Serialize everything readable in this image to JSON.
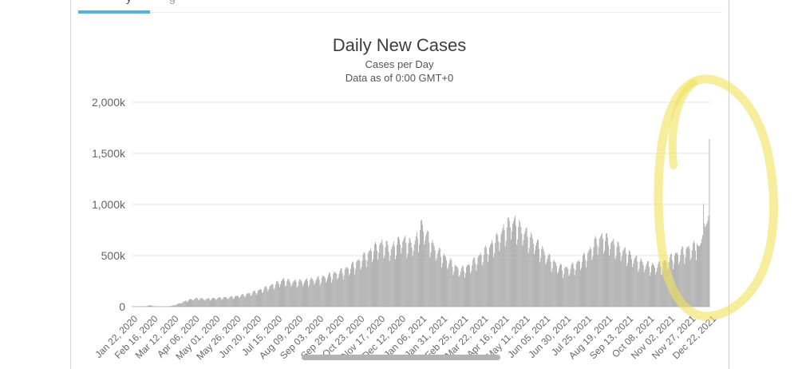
{
  "top_bar": {
    "active_tab_fragment": "y",
    "inactive_tab_fragment": "g",
    "active_underline_color": "#4fb7db"
  },
  "scrollbar": {
    "color": "#b3b3b3"
  },
  "chart_data": {
    "type": "bar",
    "title": "Daily New Cases",
    "subtitle1": "Cases per Day",
    "subtitle2": "Data as of 0:00 GMT+0",
    "xlabel": "",
    "ylabel": "",
    "legend": "none",
    "grid": "horizontal",
    "bar_color": "#a2a2a2",
    "grid_color": "#e6e6e6",
    "axis_line_color": "#c6c6c6",
    "label_color": "#666666",
    "ylim_thousands": [
      0,
      2000
    ],
    "yticks": [
      {
        "label": "2,000k",
        "value": 2000
      },
      {
        "label": "1,500k",
        "value": 1500
      },
      {
        "label": "1,000k",
        "value": 1000
      },
      {
        "label": "500k",
        "value": 500
      },
      {
        "label": "0",
        "value": 0
      }
    ],
    "x_tick_labels": [
      "Jan 22, 2020",
      "Feb 16, 2020",
      "Mar 12, 2020",
      "Apr 06, 2020",
      "May 01, 2020",
      "May 26, 2020",
      "Jun 20, 2020",
      "Jul 15, 2020",
      "Aug 09, 2020",
      "Sep 03, 2020",
      "Sep 28, 2020",
      "Oct 23, 2020",
      "Nov 17, 2020",
      "Dec 12, 2020",
      "Jan 06, 2021",
      "Jan 31, 2021",
      "Feb 25, 2021",
      "Mar 22, 2021",
      "Apr 16, 2021",
      "May 11, 2021",
      "Jun 05, 2021",
      "Jun 30, 2021",
      "Jul 25, 2021",
      "Aug 19, 2021",
      "Sep 13, 2021",
      "Oct 08, 2021",
      "Nov 02, 2021",
      "Nov 27, 2021",
      "Dec 22, 2021"
    ],
    "days_per_tick": 25,
    "n_days": 700,
    "start_date": "Jan 22, 2020",
    "envelope_keypoints_day_valuek": [
      [
        0,
        1
      ],
      [
        8,
        3
      ],
      [
        18,
        5
      ],
      [
        21,
        15
      ],
      [
        24,
        13
      ],
      [
        27,
        5
      ],
      [
        34,
        2
      ],
      [
        42,
        3
      ],
      [
        48,
        8
      ],
      [
        54,
        22
      ],
      [
        60,
        42
      ],
      [
        66,
        62
      ],
      [
        73,
        80
      ],
      [
        80,
        88
      ],
      [
        88,
        80
      ],
      [
        96,
        84
      ],
      [
        104,
        90
      ],
      [
        112,
        95
      ],
      [
        120,
        100
      ],
      [
        128,
        110
      ],
      [
        136,
        124
      ],
      [
        144,
        142
      ],
      [
        152,
        163
      ],
      [
        160,
        188
      ],
      [
        168,
        217
      ],
      [
        176,
        247
      ],
      [
        183,
        278
      ],
      [
        189,
        268
      ],
      [
        196,
        260
      ],
      [
        204,
        264
      ],
      [
        212,
        272
      ],
      [
        220,
        283
      ],
      [
        228,
        295
      ],
      [
        236,
        315
      ],
      [
        244,
        338
      ],
      [
        252,
        362
      ],
      [
        260,
        392
      ],
      [
        268,
        432
      ],
      [
        276,
        482
      ],
      [
        284,
        540
      ],
      [
        292,
        598
      ],
      [
        299,
        640
      ],
      [
        303,
        655
      ],
      [
        308,
        635
      ],
      [
        313,
        602
      ],
      [
        319,
        642
      ],
      [
        326,
        700
      ],
      [
        333,
        673
      ],
      [
        339,
        652
      ],
      [
        344,
        688
      ],
      [
        349,
        800
      ],
      [
        351,
        855
      ],
      [
        355,
        790
      ],
      [
        360,
        700
      ],
      [
        366,
        620
      ],
      [
        372,
        565
      ],
      [
        379,
        512
      ],
      [
        386,
        460
      ],
      [
        393,
        405
      ],
      [
        399,
        385
      ],
      [
        405,
        408
      ],
      [
        412,
        452
      ],
      [
        419,
        510
      ],
      [
        426,
        565
      ],
      [
        433,
        622
      ],
      [
        440,
        685
      ],
      [
        447,
        765
      ],
      [
        453,
        830
      ],
      [
        458,
        885
      ],
      [
        460,
        890
      ],
      [
        465,
        862
      ],
      [
        471,
        815
      ],
      [
        477,
        765
      ],
      [
        484,
        708
      ],
      [
        491,
        648
      ],
      [
        498,
        578
      ],
      [
        505,
        508
      ],
      [
        511,
        458
      ],
      [
        517,
        418
      ],
      [
        523,
        394
      ],
      [
        529,
        402
      ],
      [
        535,
        428
      ],
      [
        541,
        465
      ],
      [
        547,
        510
      ],
      [
        553,
        565
      ],
      [
        558,
        635
      ],
      [
        563,
        695
      ],
      [
        568,
        720
      ],
      [
        574,
        706
      ],
      [
        580,
        672
      ],
      [
        586,
        640
      ],
      [
        592,
        602
      ],
      [
        598,
        565
      ],
      [
        604,
        530
      ],
      [
        610,
        495
      ],
      [
        616,
        465
      ],
      [
        622,
        442
      ],
      [
        628,
        428
      ],
      [
        634,
        420
      ],
      [
        640,
        440
      ],
      [
        646,
        470
      ],
      [
        652,
        502
      ],
      [
        658,
        535
      ],
      [
        664,
        565
      ],
      [
        669,
        588
      ],
      [
        674,
        608
      ],
      [
        679,
        622
      ],
      [
        683,
        632
      ],
      [
        685,
        600
      ],
      [
        687,
        590
      ],
      [
        689,
        625
      ],
      [
        691,
        700
      ],
      [
        692,
        1005
      ],
      [
        693,
        815
      ],
      [
        694,
        780
      ],
      [
        695,
        795
      ],
      [
        696,
        815
      ],
      [
        697,
        840
      ],
      [
        698,
        890
      ],
      [
        699,
        1640
      ]
    ],
    "weekly_pattern_sun_to_sat": [
      0.73,
      0.8,
      0.92,
      0.985,
      1.0,
      0.99,
      0.9
    ],
    "start_day_of_week": "Wednesday",
    "annotation": {
      "shape": "hand-drawn-highlighter-circle",
      "color": "#f0e35c",
      "opacity": 0.6,
      "target": "final-spike-dec-2021"
    }
  }
}
